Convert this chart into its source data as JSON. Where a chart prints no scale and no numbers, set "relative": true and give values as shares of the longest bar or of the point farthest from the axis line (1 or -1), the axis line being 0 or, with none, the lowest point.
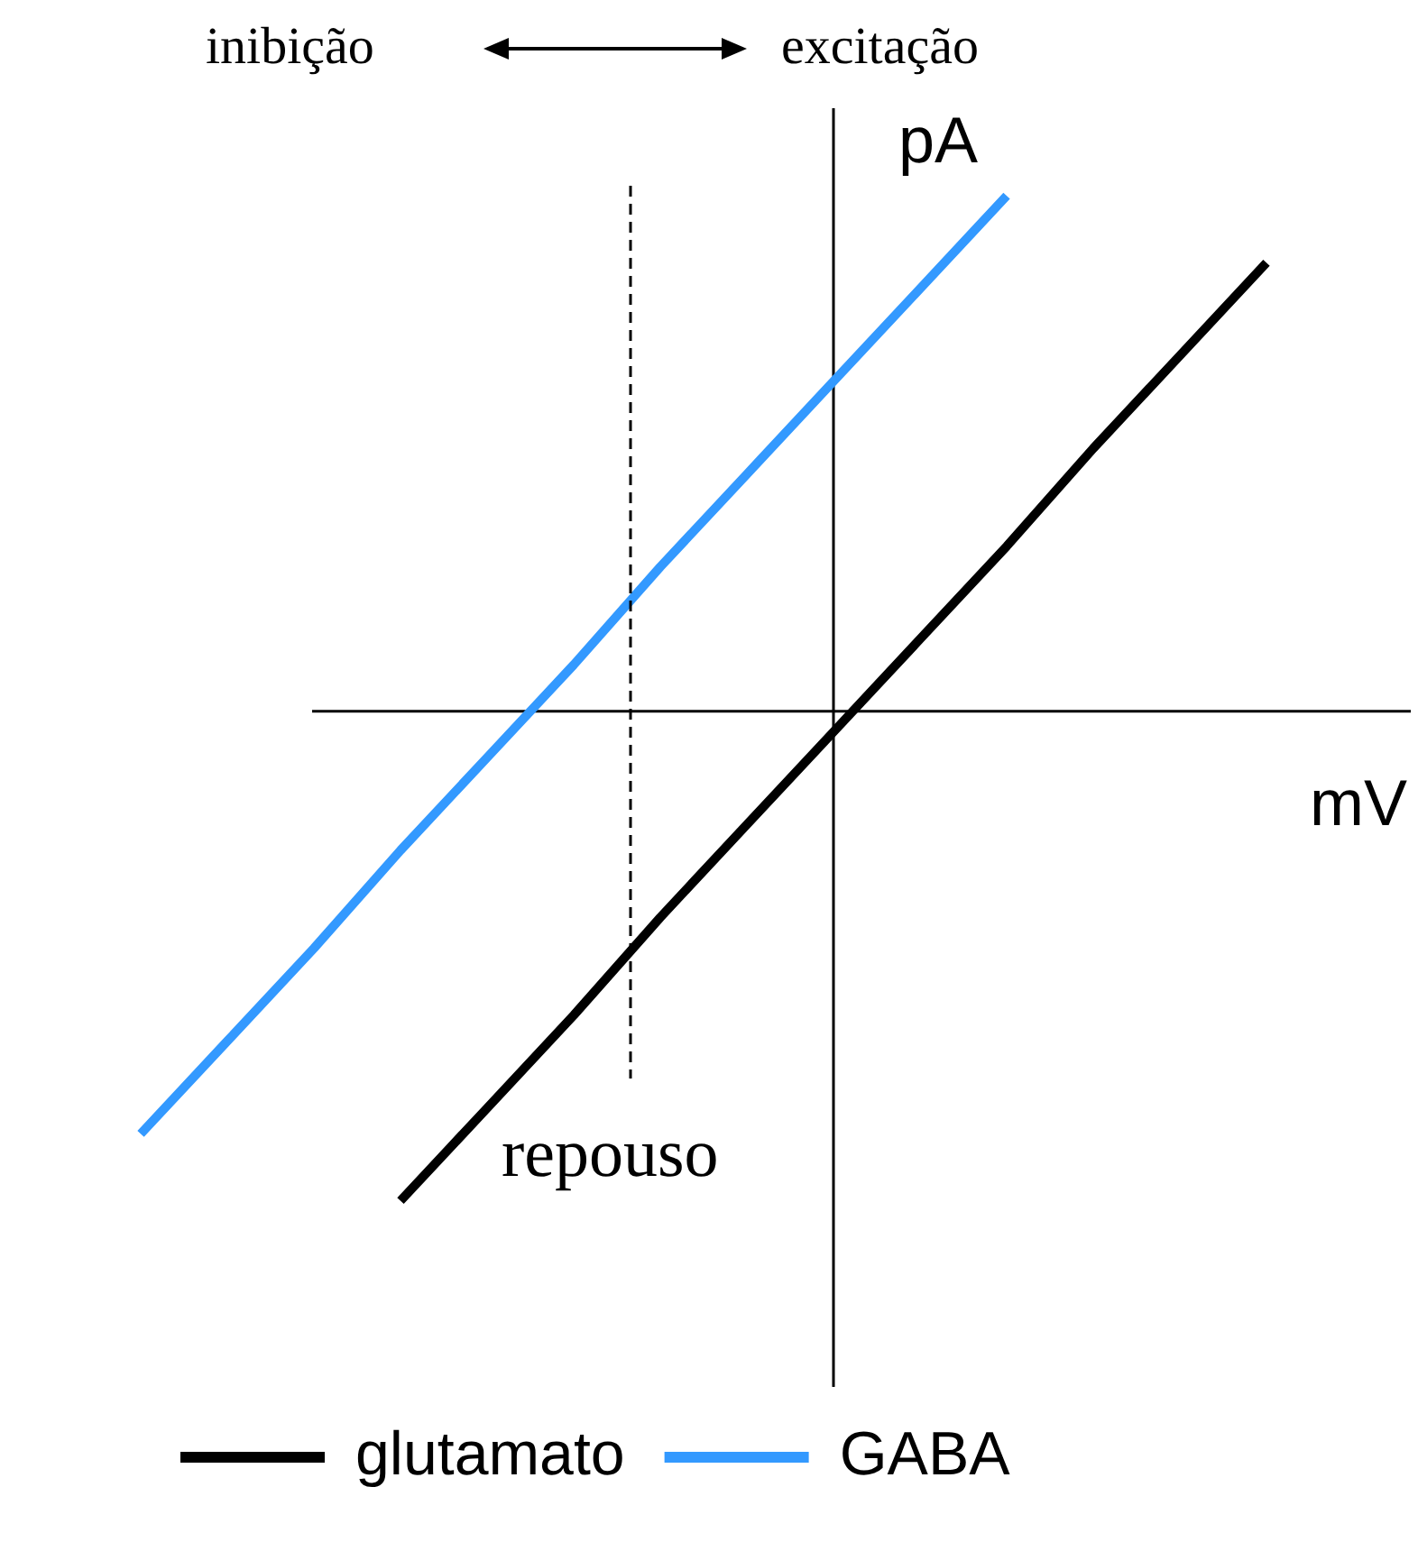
{
  "chart_data": {
    "type": "line",
    "relative": true,
    "xlabel": "mV",
    "ylabel": "pA",
    "legend": "bottom",
    "marker": "none",
    "line_style": "solid",
    "annotations": [
      "inibição",
      "excitação",
      "repouso"
    ],
    "categories": [
      null,
      null,
      null,
      null,
      null,
      null,
      null,
      null,
      null,
      null,
      null,
      null,
      null,
      null,
      null
    ],
    "series": [
      {
        "name": "glutamato",
        "color": "#000000",
        "values": [
          null,
          null,
          null,
          -0.95,
          -0.77,
          -0.59,
          -0.4,
          -0.22,
          -0.04,
          0.14,
          0.32,
          0.51,
          0.69,
          0.87,
          null
        ]
      },
      {
        "name": "GABA",
        "color": "#3399ff",
        "values": [
          -0.82,
          -0.64,
          -0.46,
          -0.27,
          -0.09,
          0.09,
          0.28,
          0.46,
          0.64,
          0.82,
          1.0,
          null,
          null,
          null,
          null
        ]
      }
    ]
  }
}
